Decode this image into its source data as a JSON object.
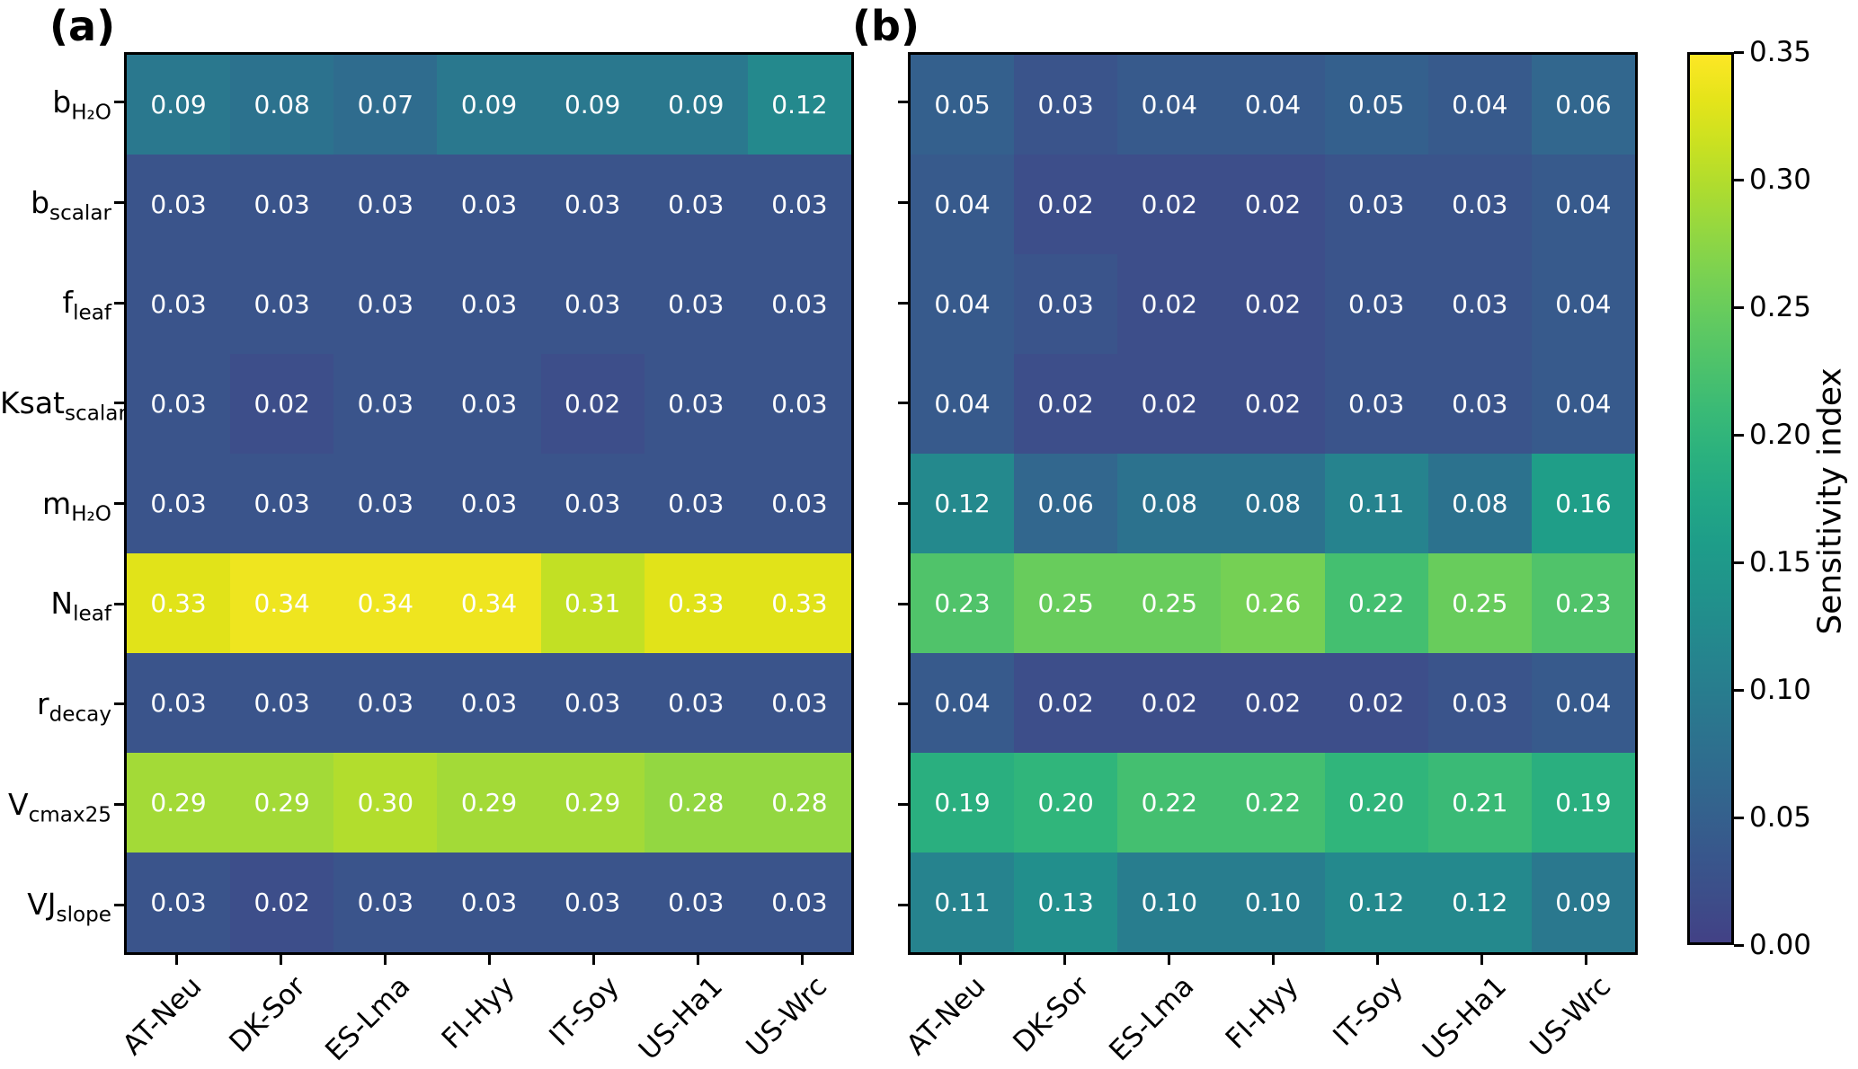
{
  "figure": {
    "panel_a_label": "(a)",
    "panel_b_label": "(b)",
    "colorbar": {
      "label": "Sensitivity index",
      "ticks": [
        "0.35",
        "0.30",
        "0.25",
        "0.20",
        "0.15",
        "0.10",
        "0.05",
        "0.00"
      ],
      "vmin": 0.0,
      "vmax": 0.35,
      "color_low": "#423f85",
      "color_mid": "#21918c",
      "color_high": "#fde725"
    }
  },
  "chart_data": [
    {
      "type": "heatmap",
      "panel": "(a)",
      "x_categories": [
        "AT-Neu",
        "DK-Sor",
        "ES-Lma",
        "FI-Hyy",
        "IT-Soy",
        "US-Ha1",
        "US-Wrc"
      ],
      "y_categories": [
        {
          "base": "b",
          "sub": "H₂O"
        },
        {
          "base": "b",
          "sub": "scalar"
        },
        {
          "base": "f",
          "sub": "leaf"
        },
        {
          "base": "Ksat",
          "sub": "scalar"
        },
        {
          "base": "m",
          "sub": "H₂O"
        },
        {
          "base": "N",
          "sub": "leaf"
        },
        {
          "base": "r",
          "sub": "decay"
        },
        {
          "base": "V",
          "sub": "cmax25"
        },
        {
          "base": "VJ",
          "sub": "slope"
        }
      ],
      "values": [
        [
          0.09,
          0.08,
          0.07,
          0.09,
          0.09,
          0.09,
          0.12
        ],
        [
          0.03,
          0.03,
          0.03,
          0.03,
          0.03,
          0.03,
          0.03
        ],
        [
          0.03,
          0.03,
          0.03,
          0.03,
          0.03,
          0.03,
          0.03
        ],
        [
          0.03,
          0.02,
          0.03,
          0.03,
          0.02,
          0.03,
          0.03
        ],
        [
          0.03,
          0.03,
          0.03,
          0.03,
          0.03,
          0.03,
          0.03
        ],
        [
          0.33,
          0.34,
          0.34,
          0.34,
          0.31,
          0.33,
          0.33
        ],
        [
          0.03,
          0.03,
          0.03,
          0.03,
          0.03,
          0.03,
          0.03
        ],
        [
          0.29,
          0.29,
          0.3,
          0.29,
          0.29,
          0.28,
          0.28
        ],
        [
          0.03,
          0.02,
          0.03,
          0.03,
          0.03,
          0.03,
          0.03
        ]
      ],
      "colormap": "viridis (truncated low end)",
      "color_range": [
        0.0,
        0.35
      ],
      "value_text_color": "#ffffff"
    },
    {
      "type": "heatmap",
      "panel": "(b)",
      "x_categories": [
        "AT-Neu",
        "DK-Sor",
        "ES-Lma",
        "FI-Hyy",
        "IT-Soy",
        "US-Ha1",
        "US-Wrc"
      ],
      "y_categories": [
        {
          "base": "b",
          "sub": "H₂O"
        },
        {
          "base": "b",
          "sub": "scalar"
        },
        {
          "base": "f",
          "sub": "leaf"
        },
        {
          "base": "Ksat",
          "sub": "scalar"
        },
        {
          "base": "m",
          "sub": "H₂O"
        },
        {
          "base": "N",
          "sub": "leaf"
        },
        {
          "base": "r",
          "sub": "decay"
        },
        {
          "base": "V",
          "sub": "cmax25"
        },
        {
          "base": "VJ",
          "sub": "slope"
        }
      ],
      "values": [
        [
          0.05,
          0.03,
          0.04,
          0.04,
          0.05,
          0.04,
          0.06
        ],
        [
          0.04,
          0.02,
          0.02,
          0.02,
          0.03,
          0.03,
          0.04
        ],
        [
          0.04,
          0.03,
          0.02,
          0.02,
          0.03,
          0.03,
          0.04
        ],
        [
          0.04,
          0.02,
          0.02,
          0.02,
          0.03,
          0.03,
          0.04
        ],
        [
          0.12,
          0.06,
          0.08,
          0.08,
          0.11,
          0.08,
          0.16
        ],
        [
          0.23,
          0.25,
          0.25,
          0.26,
          0.22,
          0.25,
          0.23
        ],
        [
          0.04,
          0.02,
          0.02,
          0.02,
          0.02,
          0.03,
          0.04
        ],
        [
          0.19,
          0.2,
          0.22,
          0.22,
          0.2,
          0.21,
          0.19
        ],
        [
          0.11,
          0.13,
          0.1,
          0.1,
          0.12,
          0.12,
          0.09
        ]
      ],
      "colormap": "viridis (truncated low end)",
      "color_range": [
        0.0,
        0.35
      ],
      "value_text_color": "#ffffff"
    }
  ]
}
